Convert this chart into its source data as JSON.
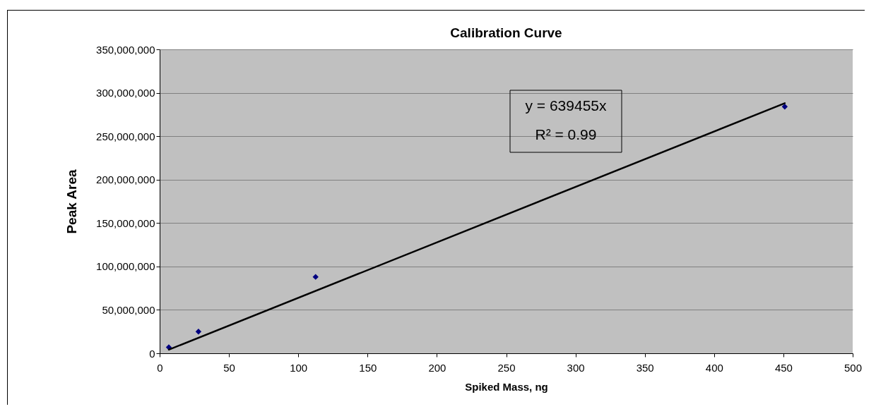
{
  "chart_data": {
    "type": "scatter",
    "title": "Calibration Curve",
    "xlabel": "Spiked Mass, ng",
    "ylabel": "Peak Area",
    "xlim": [
      0,
      500
    ],
    "xticks": [
      0,
      50,
      100,
      150,
      200,
      250,
      300,
      350,
      400,
      450,
      500
    ],
    "ylim": [
      0,
      350000000
    ],
    "yticks": [
      0,
      {
        "value": 50000000,
        "label": "50,000,000"
      },
      {
        "value": 100000000,
        "label": "100,000,000"
      },
      {
        "value": 150000000,
        "label": "150,000,000"
      },
      {
        "value": 200000000,
        "label": "200,000,000"
      },
      {
        "value": 250000000,
        "label": "250,000,000"
      },
      {
        "value": 300000000,
        "label": "300,000,000"
      },
      {
        "value": 350000000,
        "label": "350,000,000"
      }
    ],
    "grid": "y",
    "series": [
      {
        "color": "#000080",
        "marker": "diamond",
        "x": [
          6.6,
          28,
          112.5,
          451
        ],
        "values": [
          7000000,
          25000000,
          88000000,
          284000000
        ]
      },
      {
        "type": "line",
        "color": "#000000",
        "x": [
          6.6,
          451
        ],
        "values": [
          4200000,
          288000000
        ]
      }
    ],
    "annotations": [
      "y = 639455x",
      "R² = 0.99"
    ]
  }
}
